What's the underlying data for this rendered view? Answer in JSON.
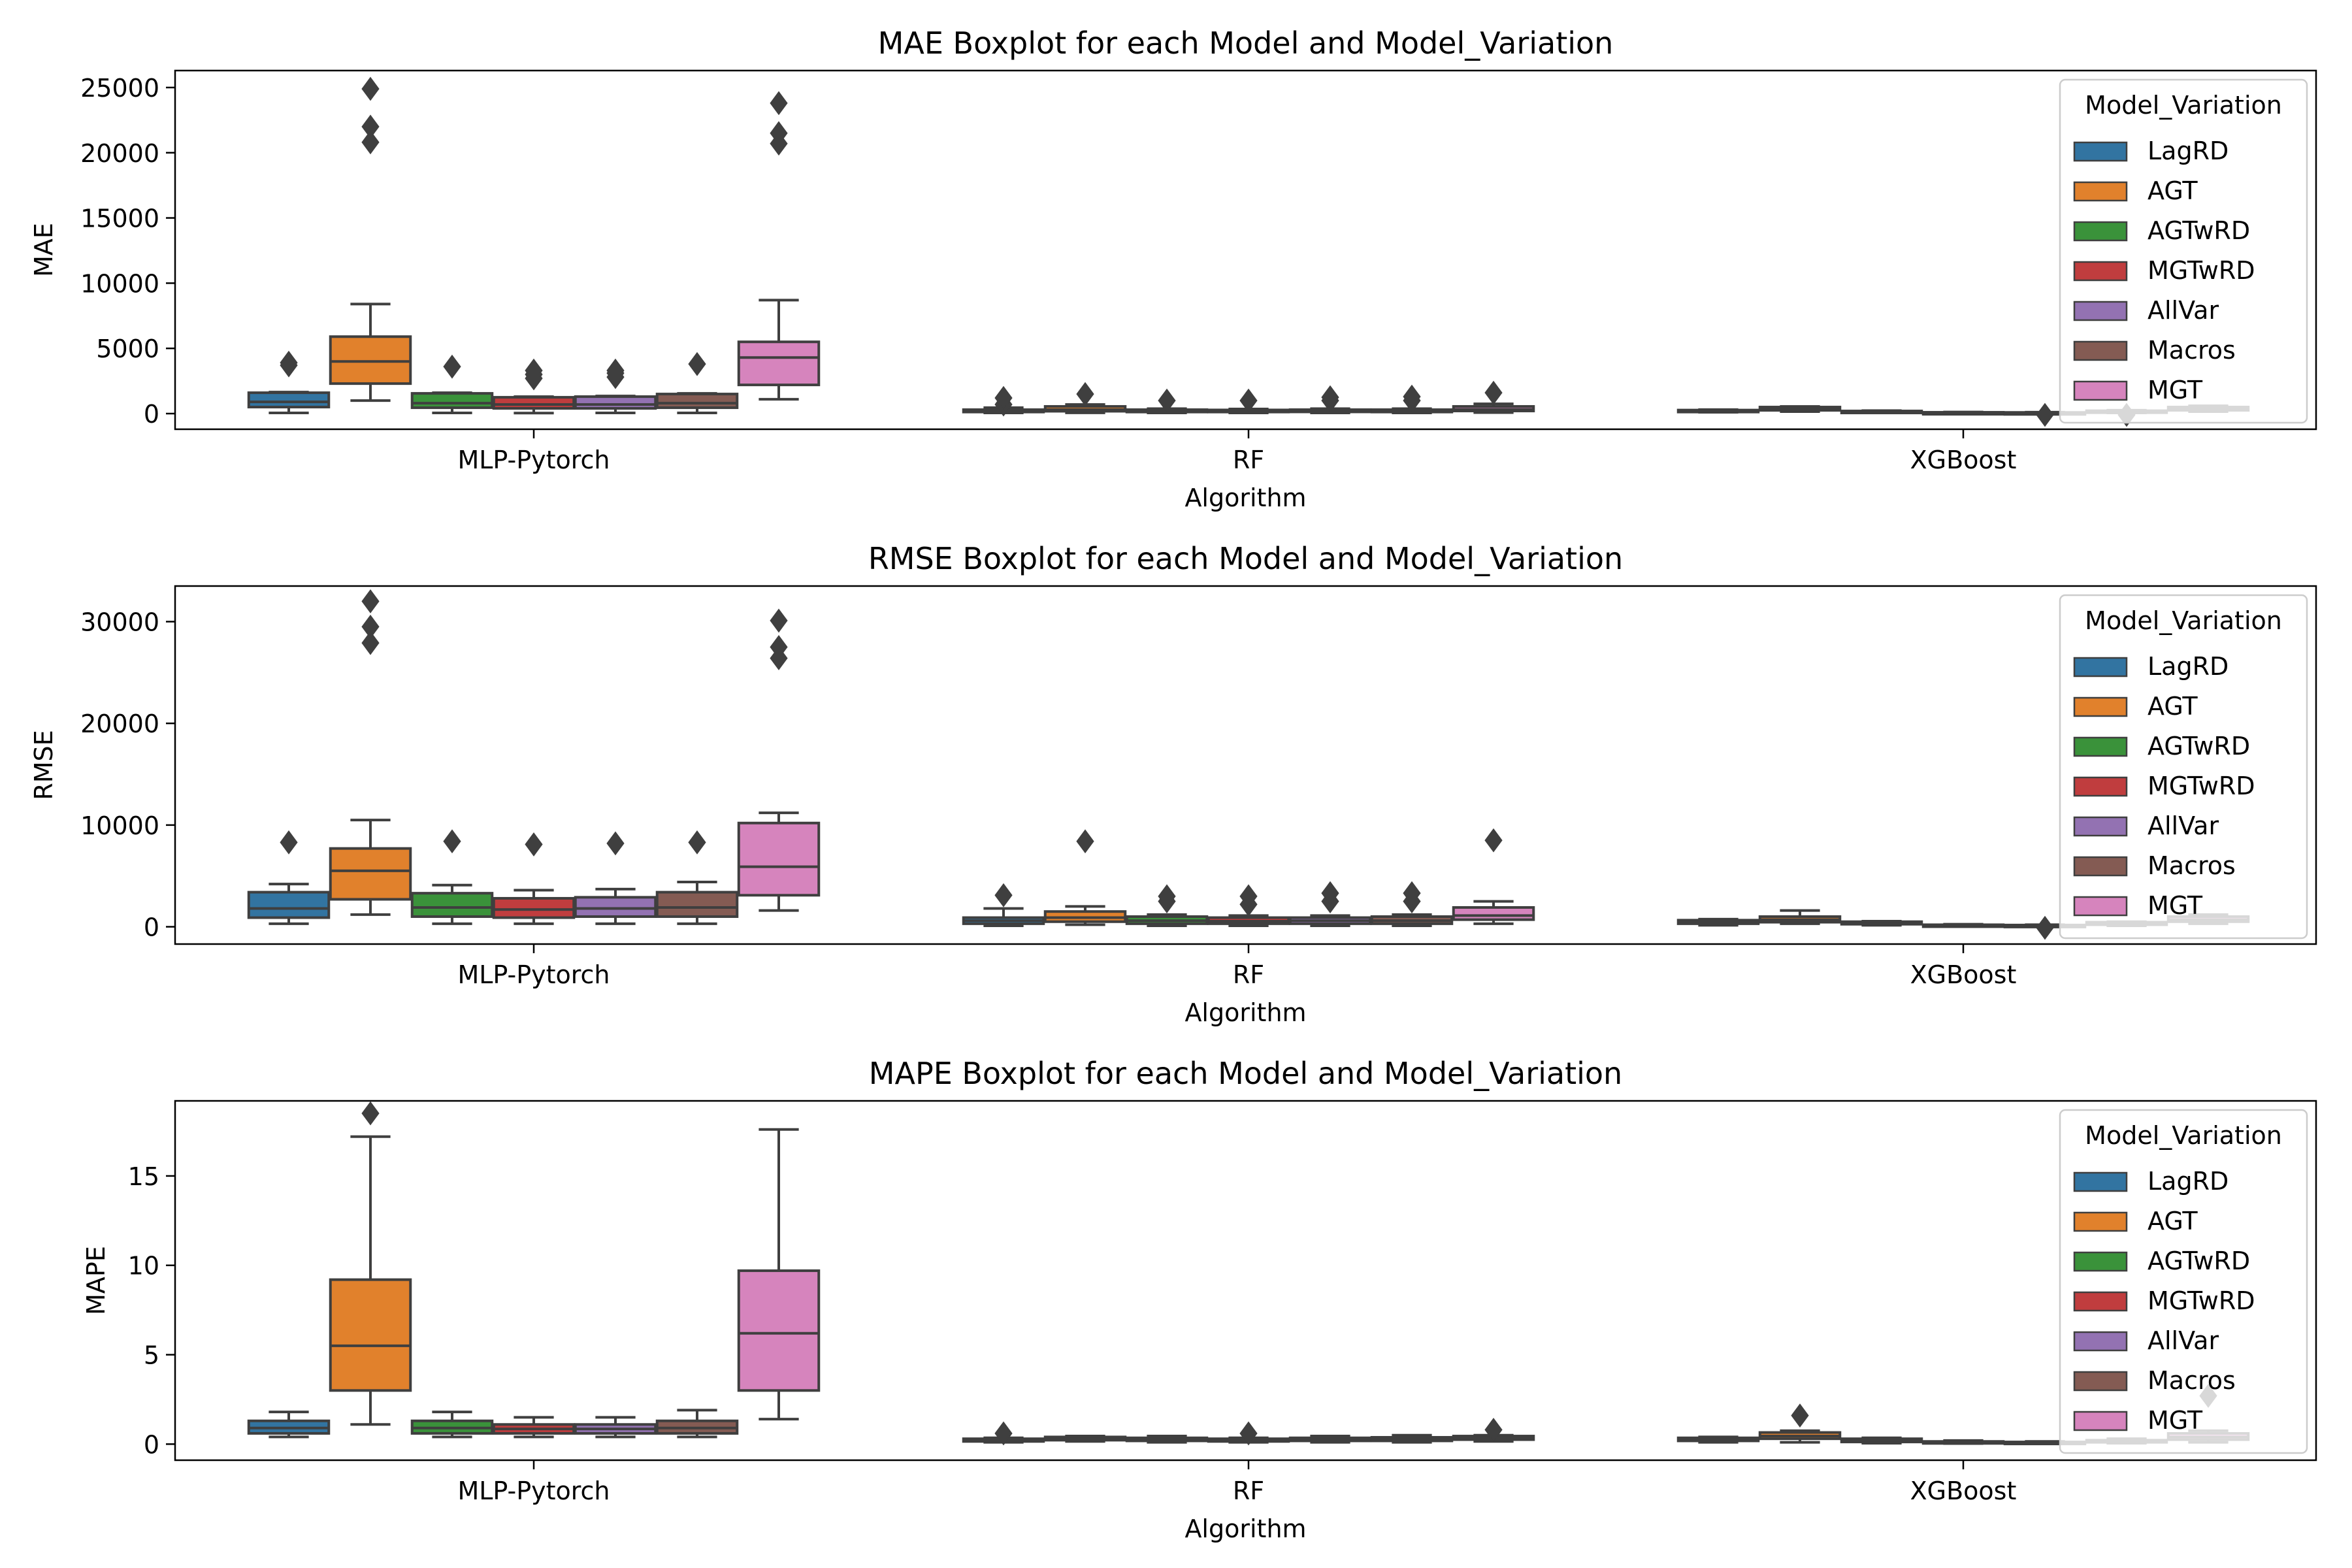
{
  "legend": {
    "title": "Model_Variation",
    "placement": "upper-right"
  },
  "palette": {
    "LagRD": "#3274a1",
    "AGT": "#e1812c",
    "AGTwRD": "#3a923a",
    "MGTwRD": "#c03d3e",
    "AllVar": "#9372b2",
    "Macros": "#845b53",
    "MGT": "#d684bd",
    "line": "#3f3f3f"
  },
  "chart_data": [
    {
      "type": "box",
      "title": "MAE Boxplot for each Model and Model_Variation",
      "xlabel": "Algorithm",
      "ylabel": "MAE",
      "ylim": [
        -1200,
        26300
      ],
      "yticks": [
        0,
        5000,
        10000,
        15000,
        20000,
        25000
      ],
      "categories": [
        "MLP-Pytorch",
        "RF",
        "XGBoost"
      ],
      "series": [
        {
          "name": "LagRD",
          "boxes": [
            {
              "whislo": 50,
              "q1": 500,
              "med": 900,
              "q3": 1600,
              "whishi": 1650,
              "fliers": [
                3700,
                3900
              ]
            },
            {
              "whislo": 50,
              "q1": 120,
              "med": 200,
              "q3": 300,
              "whishi": 450,
              "fliers": [
                700,
                1200
              ]
            },
            {
              "whislo": 100,
              "q1": 150,
              "med": 200,
              "q3": 270,
              "whishi": 300,
              "fliers": []
            }
          ]
        },
        {
          "name": "AGT",
          "boxes": [
            {
              "whislo": 1000,
              "q1": 2300,
              "med": 4000,
              "q3": 5900,
              "whishi": 8400,
              "fliers": [
                20800,
                22000,
                24900
              ]
            },
            {
              "whislo": 60,
              "q1": 180,
              "med": 300,
              "q3": 550,
              "whishi": 700,
              "fliers": [
                1500
              ]
            },
            {
              "whislo": 150,
              "q1": 250,
              "med": 350,
              "q3": 500,
              "whishi": 550,
              "fliers": []
            }
          ]
        },
        {
          "name": "AGTwRD",
          "boxes": [
            {
              "whislo": 50,
              "q1": 450,
              "med": 800,
              "q3": 1550,
              "whishi": 1600,
              "fliers": [
                3600
              ]
            },
            {
              "whislo": 50,
              "q1": 120,
              "med": 200,
              "q3": 300,
              "whishi": 380,
              "fliers": [
                1000
              ]
            },
            {
              "whislo": 80,
              "q1": 110,
              "med": 150,
              "q3": 200,
              "whishi": 230,
              "fliers": []
            }
          ]
        },
        {
          "name": "MGTwRD",
          "boxes": [
            {
              "whislo": 40,
              "q1": 400,
              "med": 700,
              "q3": 1250,
              "whishi": 1300,
              "fliers": [
                2700,
                3000,
                3300
              ]
            },
            {
              "whislo": 50,
              "q1": 120,
              "med": 180,
              "q3": 280,
              "whishi": 350,
              "fliers": [
                1000
              ]
            },
            {
              "whislo": 30,
              "q1": 50,
              "med": 70,
              "q3": 100,
              "whishi": 120,
              "fliers": []
            }
          ]
        },
        {
          "name": "AllVar",
          "boxes": [
            {
              "whislo": 50,
              "q1": 400,
              "med": 700,
              "q3": 1300,
              "whishi": 1350,
              "fliers": [
                2800,
                3100,
                3300
              ]
            },
            {
              "whislo": 50,
              "q1": 130,
              "med": 200,
              "q3": 300,
              "whishi": 380,
              "fliers": [
                1000,
                1250
              ]
            },
            {
              "whislo": 20,
              "q1": 40,
              "med": 60,
              "q3": 90,
              "whishi": 110,
              "fliers": [
                -100
              ]
            }
          ]
        },
        {
          "name": "Macros",
          "boxes": [
            {
              "whislo": 50,
              "q1": 450,
              "med": 800,
              "q3": 1500,
              "whishi": 1550,
              "fliers": [
                3800
              ]
            },
            {
              "whislo": 50,
              "q1": 120,
              "med": 200,
              "q3": 300,
              "whishi": 380,
              "fliers": [
                1000,
                1300
              ]
            },
            {
              "whislo": 50,
              "q1": 100,
              "med": 150,
              "q3": 220,
              "whishi": 260,
              "fliers": [
                -100
              ]
            }
          ]
        },
        {
          "name": "MGT",
          "boxes": [
            {
              "whislo": 1100,
              "q1": 2200,
              "med": 4300,
              "q3": 5500,
              "whishi": 8700,
              "fliers": [
                20700,
                21500,
                23800
              ]
            },
            {
              "whislo": 80,
              "q1": 200,
              "med": 320,
              "q3": 550,
              "whishi": 750,
              "fliers": [
                1600
              ]
            },
            {
              "whislo": 150,
              "q1": 250,
              "med": 350,
              "q3": 500,
              "whishi": 600,
              "fliers": []
            }
          ]
        }
      ]
    },
    {
      "type": "box",
      "title": "RMSE Boxplot for each Model and Model_Variation",
      "xlabel": "Algorithm",
      "ylabel": "RMSE",
      "ylim": [
        -1700,
        33500
      ],
      "yticks": [
        0,
        10000,
        20000,
        30000
      ],
      "categories": [
        "MLP-Pytorch",
        "RF",
        "XGBoost"
      ],
      "series": [
        {
          "name": "LagRD",
          "boxes": [
            {
              "whislo": 300,
              "q1": 900,
              "med": 1800,
              "q3": 3400,
              "whishi": 4200,
              "fliers": [
                8300
              ]
            },
            {
              "whislo": 100,
              "q1": 300,
              "med": 600,
              "q3": 900,
              "whishi": 1800,
              "fliers": [
                3100
              ]
            },
            {
              "whislo": 150,
              "q1": 300,
              "med": 450,
              "q3": 650,
              "whishi": 750,
              "fliers": []
            }
          ]
        },
        {
          "name": "AGT",
          "boxes": [
            {
              "whislo": 1200,
              "q1": 2700,
              "med": 5500,
              "q3": 7700,
              "whishi": 10500,
              "fliers": [
                27900,
                29500,
                32000
              ]
            },
            {
              "whislo": 200,
              "q1": 500,
              "med": 900,
              "q3": 1500,
              "whishi": 2000,
              "fliers": [
                8400
              ]
            },
            {
              "whislo": 300,
              "q1": 450,
              "med": 700,
              "q3": 1000,
              "whishi": 1600,
              "fliers": []
            }
          ]
        },
        {
          "name": "AGTwRD",
          "boxes": [
            {
              "whislo": 300,
              "q1": 1000,
              "med": 1900,
              "q3": 3300,
              "whishi": 4100,
              "fliers": [
                8400
              ]
            },
            {
              "whislo": 100,
              "q1": 300,
              "med": 600,
              "q3": 1000,
              "whishi": 1200,
              "fliers": [
                2500,
                3000
              ]
            },
            {
              "whislo": 150,
              "q1": 250,
              "med": 350,
              "q3": 500,
              "whishi": 550,
              "fliers": []
            }
          ]
        },
        {
          "name": "MGTwRD",
          "boxes": [
            {
              "whislo": 300,
              "q1": 900,
              "med": 1700,
              "q3": 2800,
              "whishi": 3600,
              "fliers": [
                8100
              ]
            },
            {
              "whislo": 100,
              "q1": 300,
              "med": 550,
              "q3": 900,
              "whishi": 1100,
              "fliers": [
                2200,
                3000
              ]
            },
            {
              "whislo": 50,
              "q1": 100,
              "med": 150,
              "q3": 200,
              "whishi": 250,
              "fliers": []
            }
          ]
        },
        {
          "name": "AllVar",
          "boxes": [
            {
              "whislo": 300,
              "q1": 1000,
              "med": 1800,
              "q3": 2900,
              "whishi": 3700,
              "fliers": [
                8200
              ]
            },
            {
              "whislo": 100,
              "q1": 300,
              "med": 600,
              "q3": 900,
              "whishi": 1100,
              "fliers": [
                2500,
                3300
              ]
            },
            {
              "whislo": 40,
              "q1": 80,
              "med": 120,
              "q3": 170,
              "whishi": 200,
              "fliers": [
                -100
              ]
            }
          ]
        },
        {
          "name": "Macros",
          "boxes": [
            {
              "whislo": 300,
              "q1": 1000,
              "med": 1900,
              "q3": 3400,
              "whishi": 4400,
              "fliers": [
                8300
              ]
            },
            {
              "whislo": 100,
              "q1": 300,
              "med": 600,
              "q3": 1000,
              "whishi": 1200,
              "fliers": [
                2500,
                3300
              ]
            },
            {
              "whislo": 100,
              "q1": 200,
              "med": 300,
              "q3": 450,
              "whishi": 500,
              "fliers": []
            }
          ]
        },
        {
          "name": "MGT",
          "boxes": [
            {
              "whislo": 1600,
              "q1": 3100,
              "med": 5900,
              "q3": 10200,
              "whishi": 11200,
              "fliers": [
                26400,
                27500,
                30100
              ]
            },
            {
              "whislo": 300,
              "q1": 700,
              "med": 1100,
              "q3": 1900,
              "whishi": 2500,
              "fliers": [
                8500
              ]
            },
            {
              "whislo": 300,
              "q1": 500,
              "med": 700,
              "q3": 1000,
              "whishi": 1200,
              "fliers": []
            }
          ]
        }
      ]
    },
    {
      "type": "box",
      "title": "MAPE Boxplot for each Model and Model_Variation",
      "xlabel": "Algorithm",
      "ylabel": "MAPE",
      "ylim": [
        -0.9,
        19.2
      ],
      "yticks": [
        0,
        5,
        10,
        15
      ],
      "categories": [
        "MLP-Pytorch",
        "RF",
        "XGBoost"
      ],
      "series": [
        {
          "name": "LagRD",
          "boxes": [
            {
              "whislo": 0.4,
              "q1": 0.6,
              "med": 0.9,
              "q3": 1.3,
              "whishi": 1.8,
              "fliers": []
            },
            {
              "whislo": 0.1,
              "q1": 0.15,
              "med": 0.22,
              "q3": 0.3,
              "whishi": 0.35,
              "fliers": [
                0.6
              ]
            },
            {
              "whislo": 0.1,
              "q1": 0.18,
              "med": 0.25,
              "q3": 0.35,
              "whishi": 0.4,
              "fliers": []
            }
          ]
        },
        {
          "name": "AGT",
          "boxes": [
            {
              "whislo": 1.1,
              "q1": 3.0,
              "med": 5.5,
              "q3": 9.2,
              "whishi": 17.2,
              "fliers": [
                18.5
              ]
            },
            {
              "whislo": 0.15,
              "q1": 0.22,
              "med": 0.3,
              "q3": 0.4,
              "whishi": 0.45,
              "fliers": []
            },
            {
              "whislo": 0.1,
              "q1": 0.3,
              "med": 0.45,
              "q3": 0.65,
              "whishi": 0.75,
              "fliers": [
                1.6
              ]
            }
          ]
        },
        {
          "name": "AGTwRD",
          "boxes": [
            {
              "whislo": 0.4,
              "q1": 0.6,
              "med": 0.9,
              "q3": 1.3,
              "whishi": 1.8,
              "fliers": []
            },
            {
              "whislo": 0.1,
              "q1": 0.18,
              "med": 0.25,
              "q3": 0.35,
              "whishi": 0.45,
              "fliers": []
            },
            {
              "whislo": 0.05,
              "q1": 0.12,
              "med": 0.2,
              "q3": 0.3,
              "whishi": 0.35,
              "fliers": []
            }
          ]
        },
        {
          "name": "MGTwRD",
          "boxes": [
            {
              "whislo": 0.4,
              "q1": 0.6,
              "med": 0.85,
              "q3": 1.1,
              "whishi": 1.5,
              "fliers": []
            },
            {
              "whislo": 0.1,
              "q1": 0.15,
              "med": 0.2,
              "q3": 0.3,
              "whishi": 0.35,
              "fliers": [
                0.6
              ]
            },
            {
              "whislo": 0.03,
              "q1": 0.06,
              "med": 0.1,
              "q3": 0.15,
              "whishi": 0.2,
              "fliers": []
            }
          ]
        },
        {
          "name": "AllVar",
          "boxes": [
            {
              "whislo": 0.4,
              "q1": 0.6,
              "med": 0.85,
              "q3": 1.1,
              "whishi": 1.5,
              "fliers": []
            },
            {
              "whislo": 0.1,
              "q1": 0.18,
              "med": 0.25,
              "q3": 0.35,
              "whishi": 0.45,
              "fliers": []
            },
            {
              "whislo": 0.02,
              "q1": 0.05,
              "med": 0.08,
              "q3": 0.12,
              "whishi": 0.15,
              "fliers": []
            }
          ]
        },
        {
          "name": "Macros",
          "boxes": [
            {
              "whislo": 0.4,
              "q1": 0.6,
              "med": 0.9,
              "q3": 1.3,
              "whishi": 1.9,
              "fliers": []
            },
            {
              "whislo": 0.1,
              "q1": 0.18,
              "med": 0.25,
              "q3": 0.38,
              "whishi": 0.5,
              "fliers": []
            },
            {
              "whislo": 0.05,
              "q1": 0.1,
              "med": 0.15,
              "q3": 0.22,
              "whishi": 0.3,
              "fliers": []
            }
          ]
        },
        {
          "name": "MGT",
          "boxes": [
            {
              "whislo": 1.4,
              "q1": 3.0,
              "med": 6.2,
              "q3": 9.7,
              "whishi": 17.6,
              "fliers": []
            },
            {
              "whislo": 0.15,
              "q1": 0.25,
              "med": 0.35,
              "q3": 0.45,
              "whishi": 0.5,
              "fliers": [
                0.8
              ]
            },
            {
              "whislo": 0.1,
              "q1": 0.25,
              "med": 0.4,
              "q3": 0.6,
              "whishi": 0.75,
              "fliers": [
                2.7
              ]
            }
          ]
        }
      ]
    }
  ]
}
